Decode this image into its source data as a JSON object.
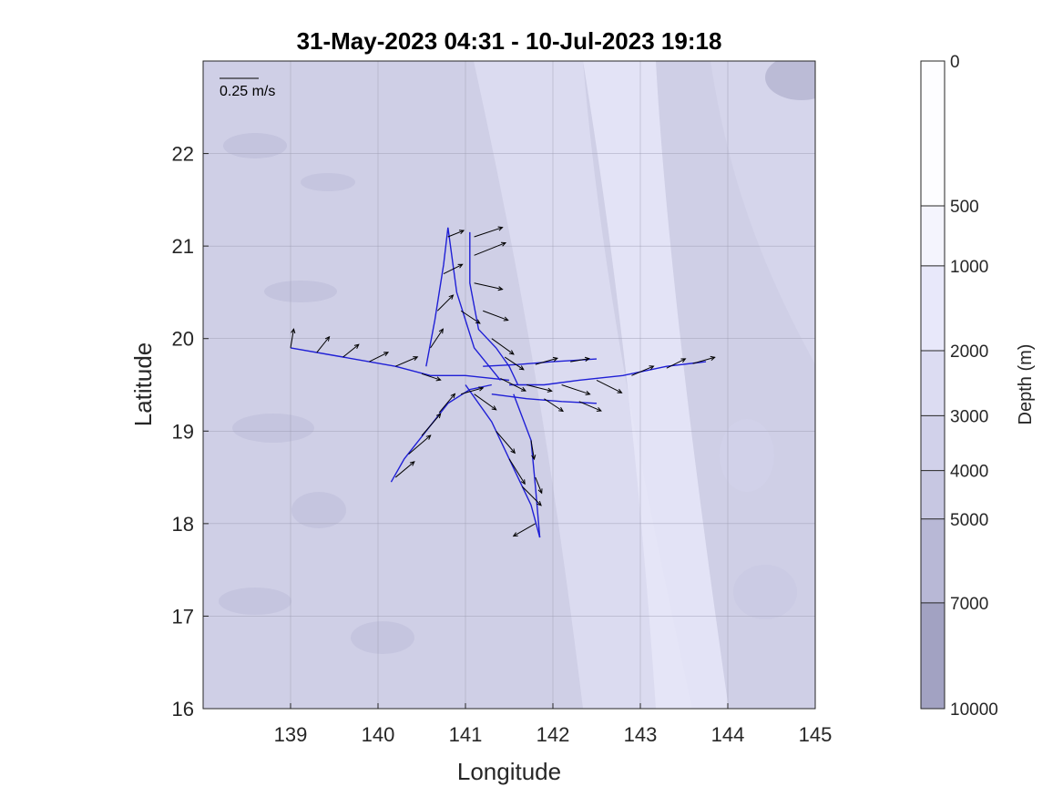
{
  "chart_data": {
    "type": "quiver",
    "title": "31-May-2023 04:31 - 10-Jul-2023 19:18",
    "xlabel": "Longitude",
    "ylabel": "Latitude",
    "xlim": [
      138,
      145
    ],
    "ylim": [
      16,
      23
    ],
    "xticks": [
      139,
      140,
      141,
      142,
      143,
      144,
      145
    ],
    "yticks": [
      16,
      17,
      18,
      19,
      20,
      21,
      22
    ],
    "grid": true,
    "scale_arrow_label": "0.25 m/s",
    "track_color": "#1f1fd6",
    "vector_color": "#000000",
    "glider_tracks": [
      {
        "lon": [
          139.0,
          139.6,
          140.2,
          140.6,
          141.0,
          141.5
        ],
        "lat": [
          19.9,
          19.8,
          19.7,
          19.6,
          19.6,
          19.55
        ]
      },
      {
        "lon": [
          140.15,
          140.3,
          140.55,
          140.8,
          141.05,
          141.3
        ],
        "lat": [
          18.45,
          18.7,
          19.0,
          19.3,
          19.45,
          19.5
        ]
      },
      {
        "lon": [
          140.55,
          140.65,
          140.75,
          140.8,
          140.9,
          141.1,
          141.4
        ],
        "lat": [
          19.7,
          20.2,
          20.8,
          21.2,
          20.5,
          19.9,
          19.55
        ]
      },
      {
        "lon": [
          141.05,
          141.05,
          141.15,
          141.35,
          141.5,
          141.6
        ],
        "lat": [
          21.15,
          20.6,
          20.1,
          19.9,
          19.7,
          19.5
        ]
      },
      {
        "lon": [
          141.0,
          141.3,
          141.55,
          141.75,
          141.85
        ],
        "lat": [
          19.5,
          19.1,
          18.6,
          18.2,
          17.85
        ]
      },
      {
        "lon": [
          141.55,
          141.75,
          141.8,
          141.85
        ],
        "lat": [
          19.4,
          18.9,
          18.4,
          17.85
        ]
      },
      {
        "lon": [
          141.5,
          141.9,
          142.3,
          142.8,
          143.3,
          143.75
        ],
        "lat": [
          19.5,
          19.5,
          19.55,
          19.6,
          19.7,
          19.75
        ]
      },
      {
        "lon": [
          141.2,
          141.6,
          142.0,
          142.5
        ],
        "lat": [
          19.7,
          19.72,
          19.75,
          19.78
        ]
      },
      {
        "lon": [
          141.3,
          141.7,
          142.1,
          142.5
        ],
        "lat": [
          19.4,
          19.35,
          19.32,
          19.3
        ]
      }
    ],
    "velocity_vectors": [
      {
        "lon": 139.0,
        "lat": 19.9,
        "u": 0.02,
        "v": 0.12
      },
      {
        "lon": 139.3,
        "lat": 19.85,
        "u": 0.08,
        "v": 0.1
      },
      {
        "lon": 139.6,
        "lat": 19.8,
        "u": 0.1,
        "v": 0.08
      },
      {
        "lon": 139.9,
        "lat": 19.75,
        "u": 0.12,
        "v": 0.06
      },
      {
        "lon": 140.2,
        "lat": 19.7,
        "u": 0.14,
        "v": 0.06
      },
      {
        "lon": 140.5,
        "lat": 19.62,
        "u": 0.12,
        "v": -0.04
      },
      {
        "lon": 141.4,
        "lat": 19.57,
        "u": 0.16,
        "v": -0.08
      },
      {
        "lon": 140.2,
        "lat": 18.5,
        "u": 0.12,
        "v": 0.1
      },
      {
        "lon": 140.35,
        "lat": 18.75,
        "u": 0.14,
        "v": 0.12
      },
      {
        "lon": 140.5,
        "lat": 18.95,
        "u": 0.12,
        "v": 0.14
      },
      {
        "lon": 140.7,
        "lat": 19.2,
        "u": 0.1,
        "v": 0.12
      },
      {
        "lon": 140.95,
        "lat": 19.4,
        "u": 0.14,
        "v": 0.04
      },
      {
        "lon": 140.6,
        "lat": 19.9,
        "u": 0.08,
        "v": 0.12
      },
      {
        "lon": 140.68,
        "lat": 20.3,
        "u": 0.1,
        "v": 0.1
      },
      {
        "lon": 140.75,
        "lat": 20.7,
        "u": 0.12,
        "v": 0.06
      },
      {
        "lon": 140.8,
        "lat": 21.1,
        "u": 0.1,
        "v": 0.04
      },
      {
        "lon": 140.95,
        "lat": 20.3,
        "u": 0.12,
        "v": -0.08
      },
      {
        "lon": 141.1,
        "lat": 21.1,
        "u": 0.18,
        "v": 0.06
      },
      {
        "lon": 141.1,
        "lat": 20.9,
        "u": 0.2,
        "v": 0.08
      },
      {
        "lon": 141.1,
        "lat": 20.6,
        "u": 0.18,
        "v": -0.04
      },
      {
        "lon": 141.2,
        "lat": 20.3,
        "u": 0.16,
        "v": -0.06
      },
      {
        "lon": 141.3,
        "lat": 20.0,
        "u": 0.14,
        "v": -0.1
      },
      {
        "lon": 141.45,
        "lat": 19.8,
        "u": 0.12,
        "v": -0.08
      },
      {
        "lon": 141.1,
        "lat": 19.4,
        "u": 0.14,
        "v": -0.1
      },
      {
        "lon": 141.35,
        "lat": 19.0,
        "u": 0.12,
        "v": -0.14
      },
      {
        "lon": 141.5,
        "lat": 18.7,
        "u": 0.1,
        "v": -0.16
      },
      {
        "lon": 141.65,
        "lat": 18.4,
        "u": 0.12,
        "v": -0.12
      },
      {
        "lon": 141.8,
        "lat": 18.0,
        "u": -0.14,
        "v": -0.08
      },
      {
        "lon": 141.75,
        "lat": 18.9,
        "u": 0.02,
        "v": -0.12
      },
      {
        "lon": 141.8,
        "lat": 18.5,
        "u": 0.04,
        "v": -0.1
      },
      {
        "lon": 141.7,
        "lat": 19.5,
        "u": 0.16,
        "v": -0.04
      },
      {
        "lon": 142.1,
        "lat": 19.5,
        "u": 0.18,
        "v": -0.06
      },
      {
        "lon": 142.5,
        "lat": 19.55,
        "u": 0.16,
        "v": -0.08
      },
      {
        "lon": 142.9,
        "lat": 19.6,
        "u": 0.14,
        "v": 0.06
      },
      {
        "lon": 143.3,
        "lat": 19.68,
        "u": 0.12,
        "v": 0.06
      },
      {
        "lon": 143.6,
        "lat": 19.73,
        "u": 0.14,
        "v": 0.04
      },
      {
        "lon": 141.8,
        "lat": 19.72,
        "u": 0.14,
        "v": 0.04
      },
      {
        "lon": 142.2,
        "lat": 19.75,
        "u": 0.12,
        "v": 0.02
      },
      {
        "lon": 141.9,
        "lat": 19.35,
        "u": 0.12,
        "v": -0.08
      },
      {
        "lon": 142.3,
        "lat": 19.32,
        "u": 0.14,
        "v": -0.06
      }
    ],
    "colorbar": {
      "label": "Depth (m)",
      "levels": [
        0,
        500,
        1000,
        2000,
        3000,
        4000,
        5000,
        7000,
        10000
      ],
      "tick_labels": [
        "0",
        "500",
        "1000",
        "2000",
        "3000",
        "4000",
        "5000",
        "7000",
        "10000"
      ],
      "colors": [
        "#fdfdff",
        "#f4f4fd",
        "#e8e8fa",
        "#dcdcf2",
        "#d1d1ea",
        "#c7c7e2",
        "#b8b8d6",
        "#a2a2c2"
      ]
    }
  }
}
